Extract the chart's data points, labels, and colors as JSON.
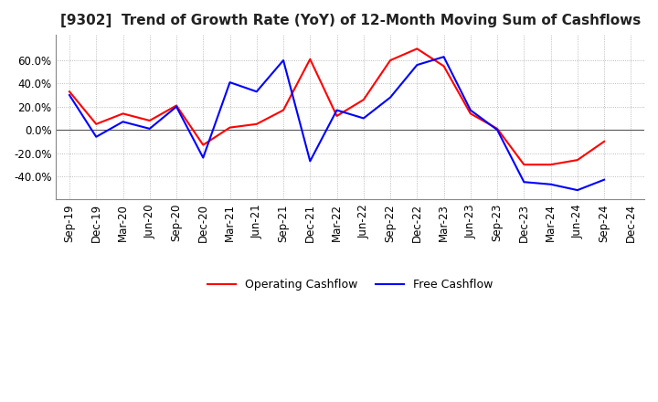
{
  "title": "[9302]  Trend of Growth Rate (YoY) of 12-Month Moving Sum of Cashflows",
  "title_fontsize": 11,
  "ylim": [
    -0.6,
    0.82
  ],
  "yticks": [
    -0.4,
    -0.2,
    0.0,
    0.2,
    0.4,
    0.6
  ],
  "x_labels": [
    "Sep-19",
    "Dec-19",
    "Mar-20",
    "Jun-20",
    "Sep-20",
    "Dec-20",
    "Mar-21",
    "Jun-21",
    "Sep-21",
    "Dec-21",
    "Mar-22",
    "Jun-22",
    "Sep-22",
    "Dec-22",
    "Mar-23",
    "Jun-23",
    "Sep-23",
    "Dec-23",
    "Mar-24",
    "Jun-24",
    "Sep-24",
    "Dec-24"
  ],
  "operating_cashflow": [
    0.33,
    0.05,
    0.14,
    0.08,
    0.21,
    -0.13,
    0.02,
    0.05,
    0.17,
    0.61,
    0.12,
    0.26,
    0.6,
    0.7,
    0.55,
    0.14,
    0.01,
    -0.3,
    -0.3,
    -0.26,
    -0.1,
    null
  ],
  "free_cashflow": [
    0.3,
    -0.06,
    0.07,
    0.01,
    0.2,
    -0.24,
    0.41,
    0.33,
    0.6,
    -0.27,
    0.17,
    0.1,
    0.28,
    0.56,
    0.63,
    0.17,
    0.0,
    -0.45,
    -0.47,
    -0.52,
    -0.43,
    null
  ],
  "operating_color": "#FF0000",
  "free_color": "#0000FF",
  "line_width": 1.5,
  "background_color": "#FFFFFF",
  "plot_bg_color": "#FFFFFF",
  "grid_color": "#AAAAAA",
  "grid_style": "dotted",
  "tick_fontsize": 8.5,
  "legend_fontsize": 9
}
